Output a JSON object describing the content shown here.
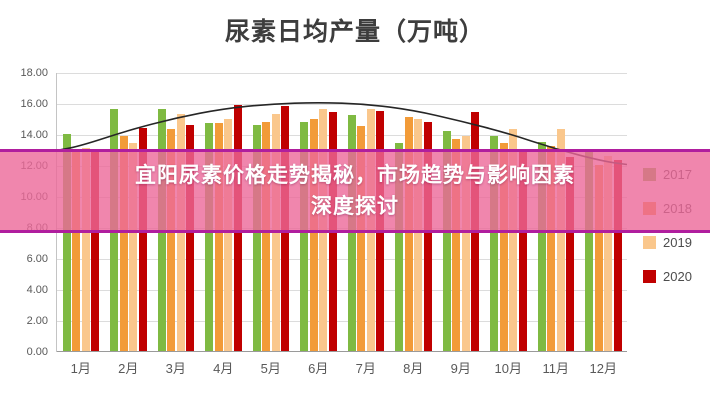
{
  "banner": {
    "lines": [
      "宜阳尿素价格走势揭秘，市场趋势与影响因素",
      "深度探讨"
    ],
    "bg_color": "rgba(236,104,152,0.8)",
    "border_color": "#B01E9E",
    "text_color": "#FFFFFF"
  },
  "chart_data": {
    "type": "bar",
    "title": "尿素日均产量（万吨）",
    "categories": [
      "1月",
      "2月",
      "3月",
      "4月",
      "5月",
      "6月",
      "7月",
      "8月",
      "9月",
      "10月",
      "11月",
      "12月"
    ],
    "series": [
      {
        "name": "2017",
        "color": "#7FBA42",
        "values": [
          14.0,
          15.6,
          15.6,
          14.7,
          14.6,
          14.8,
          15.2,
          13.4,
          14.2,
          13.9,
          13.5,
          12.9
        ]
      },
      {
        "name": "2018",
        "color": "#F29B38",
        "values": [
          12.9,
          13.9,
          14.3,
          14.7,
          14.8,
          15.0,
          14.5,
          15.1,
          13.7,
          13.4,
          13.2,
          12.0
        ]
      },
      {
        "name": "2019",
        "color": "#FAC78C",
        "values": [
          13.1,
          13.4,
          15.3,
          15.0,
          15.3,
          15.6,
          15.6,
          15.0,
          13.9,
          14.3,
          14.3,
          12.6
        ]
      },
      {
        "name": "2020",
        "color": "#C00000",
        "values": [
          13.0,
          14.4,
          14.6,
          15.9,
          15.8,
          15.4,
          15.5,
          14.8,
          15.4,
          13.0,
          12.5,
          12.3
        ]
      }
    ],
    "y_axis": {
      "min": 0,
      "max": 18,
      "step": 2,
      "decimals": 2
    },
    "legend_position": "right",
    "grid": true,
    "trend": {
      "color": "#262626",
      "edge_start": 13.0,
      "edge_end": 12.1,
      "values": [
        13.3,
        14.3,
        15.1,
        15.7,
        16.0,
        16.1,
        16.0,
        15.6,
        14.9,
        14.1,
        13.1,
        12.3
      ]
    }
  }
}
